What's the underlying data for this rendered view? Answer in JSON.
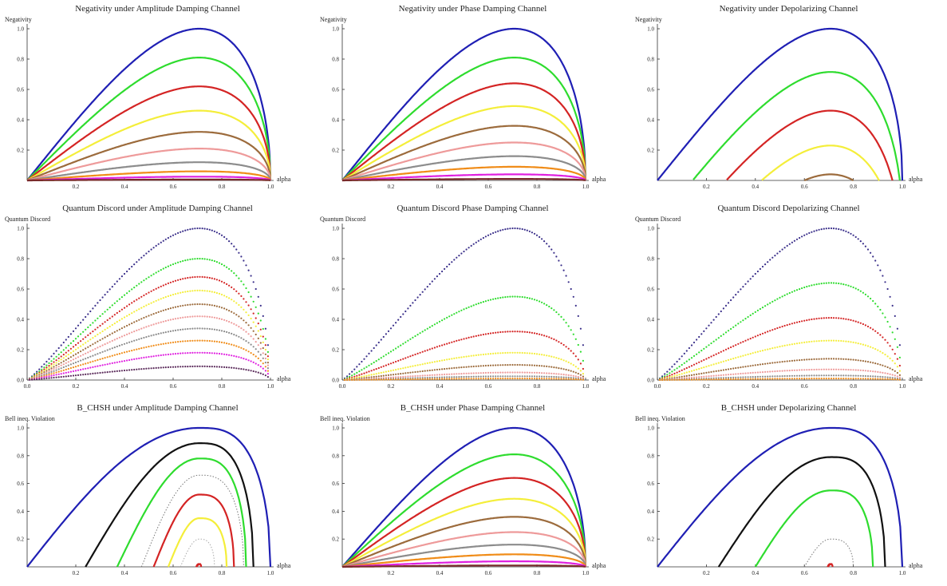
{
  "chart_data": [
    {
      "type": "line",
      "title": "Negativity under Amplitude Damping Channel",
      "ylabel": "Negativity",
      "xlabel": "alpha",
      "xlim": [
        0,
        1
      ],
      "ylim": [
        0,
        1
      ],
      "xticks": [
        "0.2",
        "0.4",
        "0.6",
        "0.8",
        "1.0"
      ],
      "yticks": [
        "0.2",
        "0.4",
        "0.6",
        "0.8",
        "1.0"
      ],
      "kind": "nfam",
      "scale": [
        1.0,
        0.81,
        0.62,
        0.46,
        0.32,
        0.21,
        0.12,
        0.06,
        0.025,
        0.006
      ],
      "colors": [
        "#1f1fb4",
        "#2edc2e",
        "#d42424",
        "#f4ee3a",
        "#9c6b3c",
        "#ee9a9a",
        "#8c8c8c",
        "#f08c18",
        "#e020e0",
        "#7a2a2a"
      ],
      "shift": [
        0,
        0,
        0,
        0,
        0,
        0,
        0,
        0,
        0,
        0
      ],
      "cut": [
        0,
        0,
        0,
        0,
        0,
        0,
        0,
        0,
        0,
        0
      ]
    },
    {
      "type": "line",
      "title": "Negativity under Phase Damping Channel",
      "ylabel": "Negativity",
      "xlabel": "alpha",
      "xlim": [
        0,
        1
      ],
      "ylim": [
        0,
        1
      ],
      "xticks": [
        "0.2",
        "0.4",
        "0.6",
        "0.8",
        "1.0"
      ],
      "yticks": [
        "0.2",
        "0.4",
        "0.6",
        "0.8",
        "1.0"
      ],
      "kind": "nfam",
      "scale": [
        1.0,
        0.81,
        0.64,
        0.49,
        0.36,
        0.25,
        0.16,
        0.09,
        0.04,
        0.01
      ],
      "colors": [
        "#1f1fb4",
        "#2edc2e",
        "#d42424",
        "#f4ee3a",
        "#9c6b3c",
        "#ee9a9a",
        "#8c8c8c",
        "#f08c18",
        "#e020e0",
        "#7a2a2a"
      ],
      "shift": [
        0,
        0,
        0,
        0,
        0,
        0,
        0,
        0,
        0,
        0
      ],
      "cut": [
        0,
        0,
        0,
        0,
        0,
        0,
        0,
        0,
        0,
        0
      ]
    },
    {
      "type": "line",
      "title": "Negativity under Depolarizing Channel",
      "ylabel": "Negativity",
      "xlabel": "alpha",
      "xlim": [
        0,
        1
      ],
      "ylim": [
        0,
        1
      ],
      "xticks": [
        "0.2",
        "0.4",
        "0.6",
        "0.8",
        "1.0"
      ],
      "yticks": [
        "0.2",
        "0.4",
        "0.6",
        "0.8",
        "1.0"
      ],
      "kind": "nfam",
      "scale": [
        1.0,
        1.0,
        1.0,
        1.0,
        1.0
      ],
      "colors": [
        "#1f1fb4",
        "#2edc2e",
        "#d42424",
        "#f4ee3a",
        "#9c6b3c"
      ],
      "shift": [
        0,
        0.285,
        0.54,
        0.77,
        0.96
      ],
      "cut": [
        0,
        0,
        0,
        0,
        0
      ]
    },
    {
      "type": "scatter",
      "title": "Quantum Discord under Amplitude Damping Channel",
      "ylabel": "Quantum Discord",
      "xlabel": "alpha",
      "xlim": [
        0,
        1
      ],
      "ylim": [
        0,
        1
      ],
      "xticks": [
        "0.0",
        "0.2",
        "0.4",
        "0.6",
        "0.8",
        "1.0"
      ],
      "yticks": [
        "0.0",
        "0.2",
        "0.4",
        "0.6",
        "0.8",
        "1.0"
      ],
      "kind": "qd",
      "scale": [
        1.0,
        0.8,
        0.68,
        0.59,
        0.5,
        0.42,
        0.34,
        0.26,
        0.18,
        0.09
      ],
      "colors": [
        "#3a2f8a",
        "#2edc2e",
        "#d42424",
        "#f4ee3a",
        "#9c6b3c",
        "#ee9a9a",
        "#8c8c8c",
        "#f08c18",
        "#e020e0",
        "#5a2a5a"
      ]
    },
    {
      "type": "scatter",
      "title": "Quantum Discord Phase Damping Channel",
      "ylabel": "Quantum Discord",
      "xlabel": "alpha",
      "xlim": [
        0,
        1
      ],
      "ylim": [
        0,
        1
      ],
      "xticks": [
        "0.0",
        "0.2",
        "0.4",
        "0.6",
        "0.8",
        "1.0"
      ],
      "yticks": [
        "0.0",
        "0.2",
        "0.4",
        "0.6",
        "0.8",
        "1.0"
      ],
      "kind": "qd",
      "scale": [
        1.0,
        0.55,
        0.32,
        0.18,
        0.1,
        0.05,
        0.025,
        0.01
      ],
      "colors": [
        "#3a2f8a",
        "#2edc2e",
        "#d42424",
        "#f4ee3a",
        "#9c6b3c",
        "#ee9a9a",
        "#8c8c8c",
        "#f08c18"
      ]
    },
    {
      "type": "scatter",
      "title": "Quantum Discord Depolarizing Channel",
      "ylabel": "Quantum Discord",
      "xlabel": "alpha",
      "xlim": [
        0,
        1
      ],
      "ylim": [
        0,
        1
      ],
      "xticks": [
        "0.0",
        "0.2",
        "0.4",
        "0.6",
        "0.8",
        "1.0"
      ],
      "yticks": [
        "0.0",
        "0.2",
        "0.4",
        "0.6",
        "0.8",
        "1.0"
      ],
      "kind": "qd",
      "scale": [
        1.0,
        0.64,
        0.41,
        0.26,
        0.14,
        0.07,
        0.03,
        0.01
      ],
      "colors": [
        "#3a2f8a",
        "#2edc2e",
        "#d42424",
        "#f4ee3a",
        "#9c6b3c",
        "#ee9a9a",
        "#8c8c8c",
        "#f08c18"
      ]
    },
    {
      "type": "line",
      "title": "B_CHSH under Amplitude Damping Channel",
      "ylabel": "Bell ineq. Violation",
      "xlabel": "alpha",
      "xlim": [
        0,
        1
      ],
      "ylim": [
        0,
        1
      ],
      "xticks": [
        "0.2",
        "0.4",
        "0.6",
        "0.8",
        "1.0"
      ],
      "yticks": [
        "0.2",
        "0.4",
        "0.6",
        "0.8",
        "1.0"
      ],
      "kind": "loops",
      "loops": [
        {
          "color": "#1f1fb4",
          "peak": 1.0,
          "x0": 0.0,
          "x1": 1.0,
          "dotted": false
        },
        {
          "color": "#111111",
          "peak": 0.89,
          "x0": 0.24,
          "x1": 0.93,
          "dotted": false
        },
        {
          "color": "#2edc2e",
          "peak": 0.78,
          "x0": 0.37,
          "x1": 0.9,
          "dotted": false
        },
        {
          "color": "#777777",
          "peak": 0.66,
          "x0": 0.47,
          "x1": 0.89,
          "dotted": true
        },
        {
          "color": "#d42424",
          "peak": 0.52,
          "x0": 0.52,
          "x1": 0.85,
          "dotted": false
        },
        {
          "color": "#f4ee3a",
          "peak": 0.35,
          "x0": 0.58,
          "x1": 0.82,
          "dotted": false
        },
        {
          "color": "#aaaaaa",
          "peak": 0.2,
          "x0": 0.63,
          "x1": 0.77,
          "dotted": true
        },
        {
          "color": "#d42424",
          "peak": 0.02,
          "x0": 0.695,
          "x1": 0.715,
          "dotted": false
        }
      ]
    },
    {
      "type": "line",
      "title": "B_CHSH under Phase Damping Channel",
      "ylabel": "Bell ineq. Violation",
      "xlabel": "alpha",
      "xlim": [
        0,
        1
      ],
      "ylim": [
        0,
        1
      ],
      "xticks": [
        "0.2",
        "0.4",
        "0.6",
        "0.8",
        "1.0"
      ],
      "yticks": [
        "0.2",
        "0.4",
        "0.6",
        "0.8",
        "1.0"
      ],
      "kind": "nfam",
      "scale": [
        1.0,
        0.81,
        0.64,
        0.49,
        0.36,
        0.25,
        0.16,
        0.09,
        0.04,
        0.01
      ],
      "colors": [
        "#1f1fb4",
        "#2edc2e",
        "#d42424",
        "#f4ee3a",
        "#9c6b3c",
        "#ee9a9a",
        "#8c8c8c",
        "#f08c18",
        "#e020e0",
        "#7a2a2a"
      ],
      "shift": [
        0,
        0,
        0,
        0,
        0,
        0,
        0,
        0,
        0,
        0
      ],
      "cut": [
        0,
        0,
        0,
        0,
        0,
        0,
        0,
        0,
        0,
        0
      ]
    },
    {
      "type": "line",
      "title": "B_CHSH under Depolarizing Channel",
      "ylabel": "Bell ineq. Violation",
      "xlabel": "alpha",
      "xlim": [
        0,
        1
      ],
      "ylim": [
        0,
        1
      ],
      "xticks": [
        "0.2",
        "0.4",
        "0.6",
        "0.8",
        "1.0"
      ],
      "yticks": [
        "0.2",
        "0.4",
        "0.6",
        "0.8",
        "1.0"
      ],
      "kind": "loops",
      "loops": [
        {
          "color": "#1f1fb4",
          "peak": 1.0,
          "x0": 0.0,
          "x1": 1.0,
          "dotted": false
        },
        {
          "color": "#111111",
          "peak": 0.79,
          "x0": 0.25,
          "x1": 0.93,
          "dotted": false
        },
        {
          "color": "#2edc2e",
          "peak": 0.55,
          "x0": 0.4,
          "x1": 0.88,
          "dotted": false
        },
        {
          "color": "#777777",
          "peak": 0.2,
          "x0": 0.6,
          "x1": 0.8,
          "dotted": true
        },
        {
          "color": "#d42424",
          "peak": 0.02,
          "x0": 0.695,
          "x1": 0.715,
          "dotted": false
        }
      ]
    }
  ]
}
